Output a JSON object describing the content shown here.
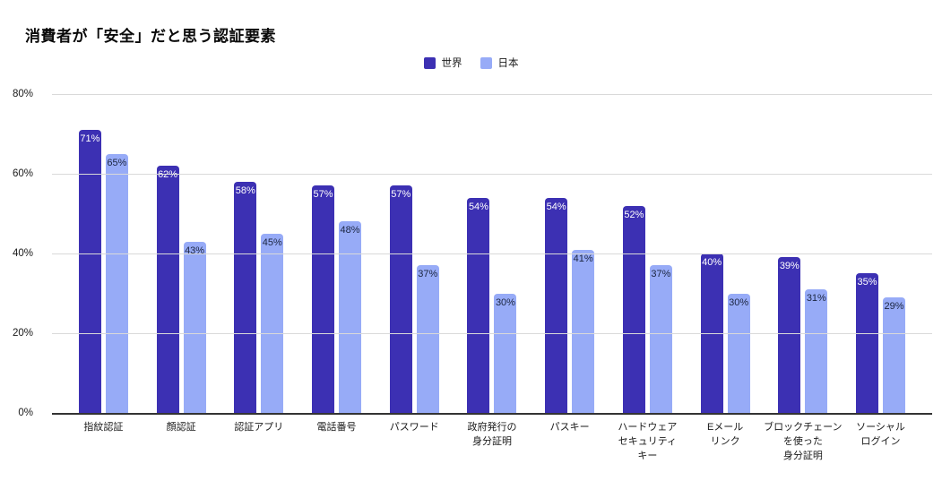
{
  "chart_data": {
    "type": "bar",
    "title": "消費者が「安全」だと思う認証要素",
    "legend_position": "top-center",
    "grid": true,
    "ylim": [
      0,
      80
    ],
    "value_suffix": "%",
    "y_ticks": [
      {
        "value": 0,
        "label": "0%"
      },
      {
        "value": 20,
        "label": "20%"
      },
      {
        "value": 40,
        "label": "40%"
      },
      {
        "value": 60,
        "label": "60%"
      },
      {
        "value": 80,
        "label": "80%"
      }
    ],
    "categories": [
      [
        "指紋認証"
      ],
      [
        "顔認証"
      ],
      [
        "認証アプリ"
      ],
      [
        "電話番号"
      ],
      [
        "パスワード"
      ],
      [
        "政府発行の",
        "身分証明"
      ],
      [
        "パスキー"
      ],
      [
        "ハードウェア",
        "セキュリティ",
        "キー"
      ],
      [
        "Eメール",
        "リンク"
      ],
      [
        "ブロックチェーン",
        "を使った",
        "身分証明"
      ],
      [
        "ソーシャル",
        "ログイン"
      ]
    ],
    "series": [
      {
        "name": "世界",
        "color": "#3C30B3",
        "value_label_color": "#ffffff",
        "values": [
          71,
          62,
          58,
          57,
          57,
          54,
          54,
          52,
          40,
          39,
          35
        ]
      },
      {
        "name": "日本",
        "color": "#97ABF7",
        "value_label_color": "#1B2540",
        "values": [
          65,
          43,
          45,
          48,
          37,
          30,
          41,
          37,
          30,
          31,
          29
        ]
      }
    ]
  }
}
